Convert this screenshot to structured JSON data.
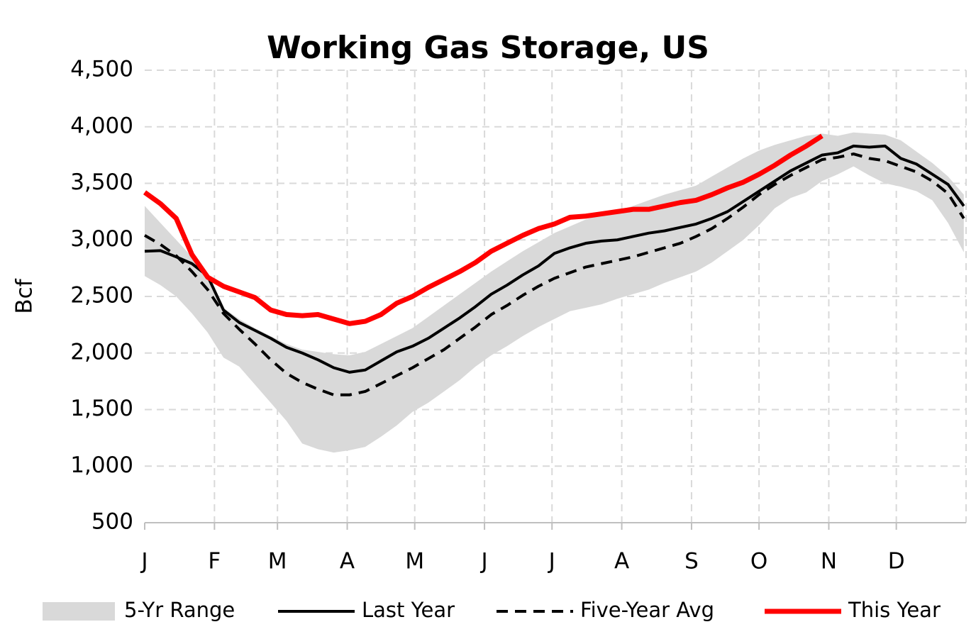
{
  "chart_data": {
    "type": "line",
    "title": "Working Gas Storage, US",
    "ylabel": "Bcf",
    "x": [
      0,
      7,
      14,
      21,
      28,
      35,
      42,
      49,
      56,
      63,
      70,
      77,
      84,
      91,
      98,
      105,
      112,
      119,
      126,
      133,
      140,
      147,
      154,
      161,
      168,
      175,
      182,
      189,
      196,
      203,
      210,
      217,
      224,
      231,
      238,
      245,
      252,
      259,
      266,
      273,
      280,
      287,
      294,
      301,
      308,
      315,
      322,
      329,
      336,
      343,
      350,
      357,
      364
    ],
    "xlim": [
      0,
      365
    ],
    "xticks": [
      {
        "value": 0,
        "label": "J"
      },
      {
        "value": 31,
        "label": "F"
      },
      {
        "value": 59,
        "label": "M"
      },
      {
        "value": 90,
        "label": "A"
      },
      {
        "value": 120,
        "label": "M"
      },
      {
        "value": 151,
        "label": "J"
      },
      {
        "value": 181,
        "label": "J"
      },
      {
        "value": 212,
        "label": "A"
      },
      {
        "value": 243,
        "label": "S"
      },
      {
        "value": 273,
        "label": "O"
      },
      {
        "value": 304,
        "label": "N"
      },
      {
        "value": 334,
        "label": "D"
      }
    ],
    "ylim": [
      500,
      4500
    ],
    "yticks": [
      {
        "value": 500,
        "label": "500"
      },
      {
        "value": 1000,
        "label": "1,000"
      },
      {
        "value": 1500,
        "label": "1,500"
      },
      {
        "value": 2000,
        "label": "2,000"
      },
      {
        "value": 2500,
        "label": "2,500"
      },
      {
        "value": 3000,
        "label": "3,000"
      },
      {
        "value": 3500,
        "label": "3,500"
      },
      {
        "value": 4000,
        "label": "4,000"
      },
      {
        "value": 4500,
        "label": "4,500"
      }
    ],
    "grid": true,
    "legend": "bottom",
    "series": [
      {
        "name": "5-Yr Range",
        "color": "#d9d9d9",
        "style": "band",
        "high": [
          3300,
          3150,
          3000,
          2850,
          2650,
          2400,
          2300,
          2220,
          2150,
          2080,
          2030,
          2010,
          1990,
          1980,
          2010,
          2080,
          2150,
          2220,
          2320,
          2420,
          2520,
          2620,
          2720,
          2810,
          2900,
          2980,
          3060,
          3120,
          3180,
          3220,
          3260,
          3300,
          3350,
          3400,
          3440,
          3480,
          3560,
          3640,
          3720,
          3790,
          3840,
          3880,
          3920,
          3940,
          3920,
          3950,
          3940,
          3930,
          3880,
          3780,
          3680,
          3560,
          3400
        ],
        "low": [
          2680,
          2600,
          2500,
          2350,
          2180,
          1960,
          1880,
          1720,
          1560,
          1400,
          1200,
          1150,
          1120,
          1140,
          1170,
          1260,
          1360,
          1480,
          1560,
          1660,
          1760,
          1880,
          1980,
          2060,
          2150,
          2230,
          2300,
          2370,
          2400,
          2430,
          2480,
          2520,
          2560,
          2620,
          2670,
          2720,
          2800,
          2900,
          3000,
          3130,
          3280,
          3370,
          3420,
          3520,
          3580,
          3650,
          3570,
          3500,
          3470,
          3430,
          3350,
          3150,
          2890
        ]
      },
      {
        "name": "Last Year",
        "color": "#000000",
        "style": "solid",
        "values": [
          2900,
          2905,
          2850,
          2790,
          2680,
          2380,
          2270,
          2200,
          2130,
          2050,
          2000,
          1940,
          1870,
          1830,
          1850,
          1930,
          2010,
          2060,
          2130,
          2220,
          2310,
          2410,
          2520,
          2600,
          2690,
          2770,
          2880,
          2930,
          2970,
          2990,
          3000,
          3030,
          3060,
          3080,
          3110,
          3140,
          3190,
          3250,
          3340,
          3430,
          3520,
          3610,
          3680,
          3750,
          3770,
          3830,
          3820,
          3830,
          3720,
          3670,
          3580,
          3490,
          3300
        ]
      },
      {
        "name": "Five-Year Avg",
        "color": "#000000",
        "style": "dashed",
        "values": [
          3040,
          2960,
          2860,
          2720,
          2560,
          2350,
          2210,
          2080,
          1940,
          1820,
          1740,
          1680,
          1630,
          1630,
          1660,
          1730,
          1800,
          1870,
          1950,
          2030,
          2130,
          2230,
          2340,
          2420,
          2510,
          2590,
          2660,
          2710,
          2760,
          2790,
          2820,
          2850,
          2890,
          2930,
          2970,
          3030,
          3100,
          3190,
          3290,
          3400,
          3490,
          3570,
          3640,
          3710,
          3730,
          3760,
          3720,
          3700,
          3650,
          3600,
          3520,
          3410,
          3190
        ]
      },
      {
        "name": "This Year",
        "color": "#ff0000",
        "style": "thick",
        "values": [
          3420,
          3320,
          3190,
          2870,
          2670,
          2590,
          2540,
          2490,
          2380,
          2340,
          2330,
          2340,
          2300,
          2260,
          2280,
          2340,
          2440,
          2500,
          2580,
          2650,
          2720,
          2800,
          2900,
          2970,
          3040,
          3100,
          3140,
          3200,
          3210,
          3230,
          3250,
          3270,
          3270,
          3300,
          3330,
          3350,
          3400,
          3460,
          3510,
          3580,
          3660,
          3750,
          3830,
          3920,
          null,
          null,
          null,
          null,
          null,
          null,
          null,
          null,
          null
        ]
      }
    ]
  }
}
